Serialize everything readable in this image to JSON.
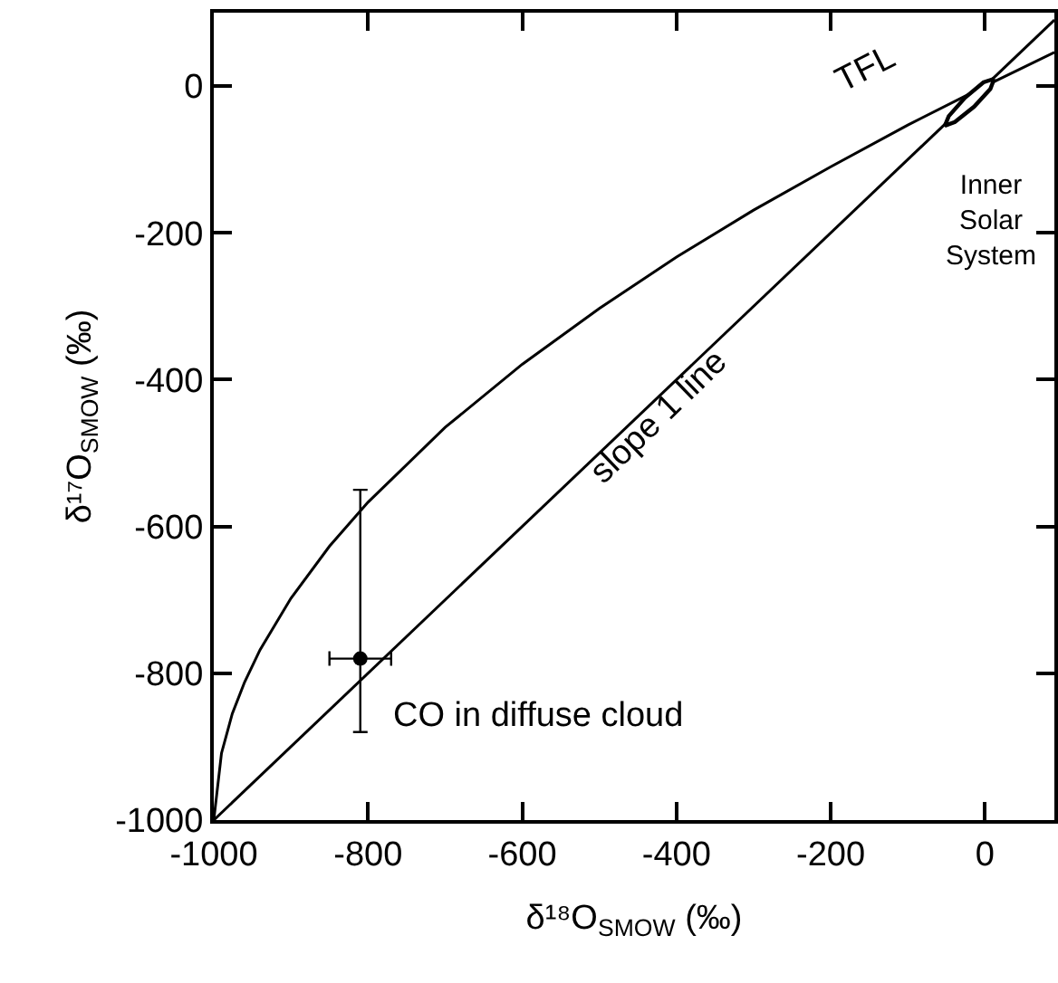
{
  "chart_data": {
    "type": "line",
    "xlabel": "δ¹⁸O$_{SMOW}$ (‰)",
    "ylabel": "δ¹⁷O$_{SMOW}$ (‰)",
    "xlim": [
      -1000,
      90
    ],
    "ylim": [
      -1000,
      100
    ],
    "xticks": [
      -1000,
      -800,
      -600,
      -400,
      -200,
      0
    ],
    "yticks": [
      -1000,
      -800,
      -600,
      -400,
      -200,
      0
    ],
    "marker": "none",
    "line_style": "solid",
    "series": [
      {
        "color": "#000000",
        "x": [
          -1000,
          90
        ],
        "values": [
          -1000,
          90
        ]
      },
      {
        "color": "#000000",
        "x": [
          -1000,
          -990,
          -976,
          -960,
          -940,
          -900,
          -850,
          -800,
          -700,
          -600,
          -500,
          -400,
          -300,
          -200,
          -100,
          0,
          90
        ],
        "values": [
          -1000,
          -909,
          -855,
          -812,
          -768,
          -698,
          -627,
          -567,
          -465,
          -379,
          -303,
          -233,
          -169,
          -110,
          -53,
          0,
          46
        ]
      },
      {
        "type": "area",
        "color": "#000000",
        "x": [
          12,
          -2,
          -26,
          -47,
          -52,
          -39,
          -14,
          7,
          12
        ],
        "values": [
          10,
          5,
          -16,
          -41,
          -54,
          -49,
          -28,
          -4,
          10
        ]
      },
      {
        "type": "scatter",
        "marker": "circle",
        "color": "#000000",
        "x": [
          -810
        ],
        "values": [
          -780
        ],
        "errors": [
          [
            -880,
            -550
          ]
        ],
        "xerrors": [
          40
        ]
      }
    ],
    "annotations": [
      "TFL",
      "slope 1 line",
      "Inner\nSolar\nSystem",
      "CO in diffuse cloud"
    ]
  }
}
